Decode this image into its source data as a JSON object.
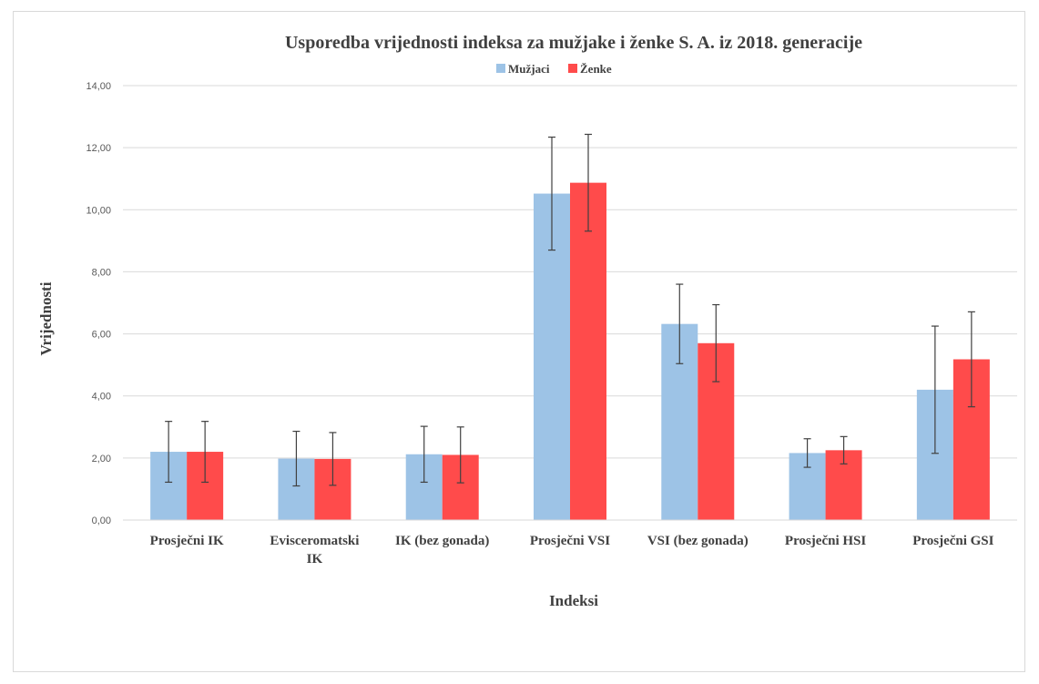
{
  "chart_data": {
    "type": "bar",
    "title": "Usporedba vrijednosti indeksa za mužjake i ženke S. A. iz 2018. generacije",
    "xlabel": "Indeksi",
    "ylabel": "Vrijednosti",
    "ylim": [
      0,
      14
    ],
    "yticks": [
      "0,00",
      "2,00",
      "4,00",
      "6,00",
      "8,00",
      "10,00",
      "12,00",
      "14,00"
    ],
    "grid": true,
    "legend_position": "top",
    "categories": [
      [
        "Prosječni IK"
      ],
      [
        "Evisceromatski",
        "IK"
      ],
      [
        "IK (bez gonada)"
      ],
      [
        "Prosječni VSI"
      ],
      [
        "VSI (bez gonada)"
      ],
      [
        "Prosječni HSI"
      ],
      [
        "Prosječni GSI"
      ]
    ],
    "series": [
      {
        "name": "Mužjaci",
        "color": "#9dc3e6",
        "values": [
          2.2,
          1.98,
          2.12,
          10.52,
          6.32,
          2.16,
          4.2
        ],
        "error": [
          0.98,
          0.88,
          0.9,
          1.82,
          1.28,
          0.46,
          2.05
        ]
      },
      {
        "name": "Ženke",
        "color": "#ff4b4b",
        "values": [
          2.2,
          1.97,
          2.1,
          10.87,
          5.7,
          2.25,
          5.18
        ],
        "error": [
          0.98,
          0.85,
          0.9,
          1.56,
          1.24,
          0.44,
          1.53
        ]
      }
    ]
  }
}
